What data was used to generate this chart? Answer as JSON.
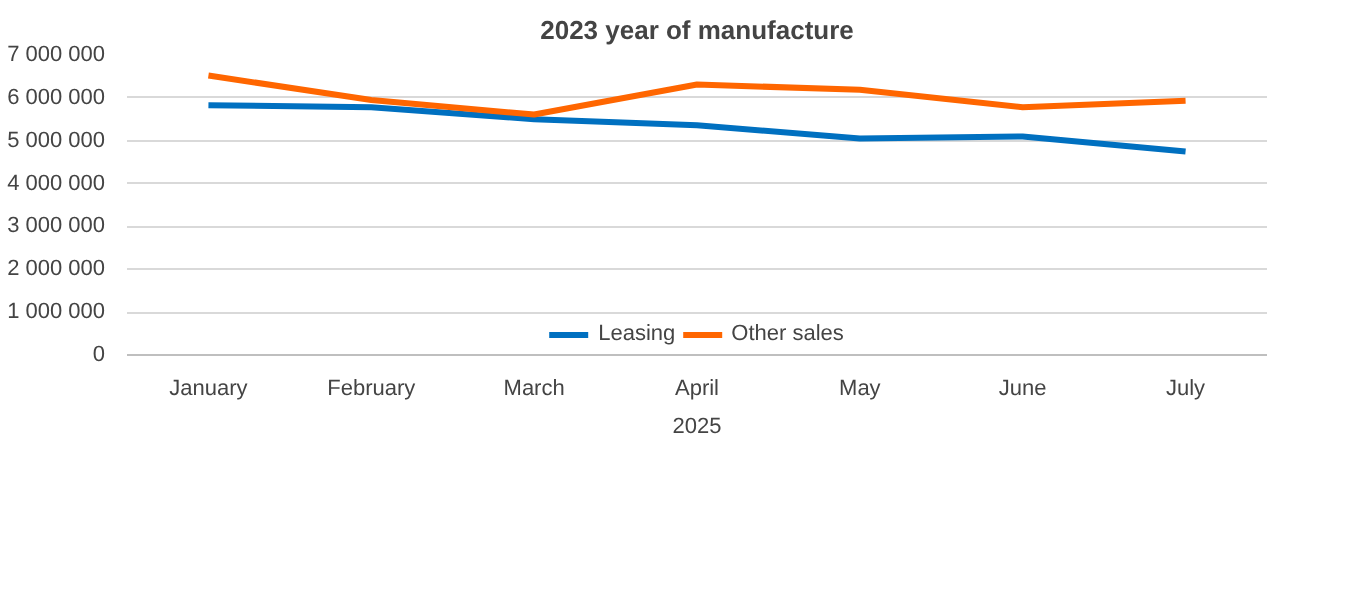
{
  "chart_data": {
    "type": "line",
    "title": "2023 year of manufacture",
    "xlabel": "2025",
    "categories": [
      "January",
      "February",
      "March",
      "April",
      "May",
      "June",
      "July"
    ],
    "series": [
      {
        "name": "Leasing",
        "color": "#0070c0",
        "values": [
          5830000,
          5780000,
          5500000,
          5360000,
          5050000,
          5100000,
          4750000
        ]
      },
      {
        "name": "Other sales",
        "color": "#ff6600",
        "values": [
          6520000,
          5950000,
          5610000,
          6310000,
          6190000,
          5780000,
          5930000
        ]
      }
    ],
    "ylim": [
      0,
      7000000
    ],
    "yticks": [
      0,
      {
        "value": 1000000,
        "label": "1 000 000"
      },
      {
        "value": 2000000,
        "label": "2 000 000"
      },
      {
        "value": 3000000,
        "label": "3 000 000"
      },
      {
        "value": 4000000,
        "label": "4 000 000"
      },
      {
        "value": 5000000,
        "label": "5 000 000"
      },
      {
        "value": 6000000,
        "label": "6 000 000"
      },
      {
        "value": 7000000,
        "label": "7 000 000"
      }
    ],
    "grid": "y",
    "legend": "bottom",
    "marker": "none",
    "line_style": "solid"
  }
}
